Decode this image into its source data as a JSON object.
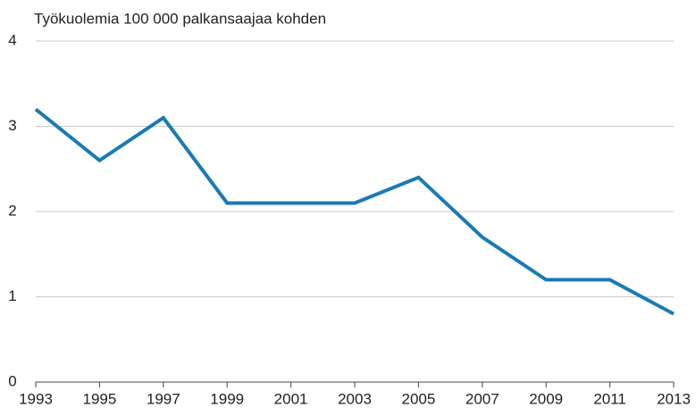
{
  "chart_data": {
    "type": "line",
    "title": "Työkuolemia 100 000 palkansaajaa kohden",
    "x": [
      1993,
      1995,
      1997,
      1999,
      2001,
      2003,
      2005,
      2007,
      2009,
      2011,
      2013
    ],
    "values": [
      3.2,
      2.6,
      3.1,
      2.1,
      2.1,
      2.1,
      2.4,
      1.7,
      1.2,
      1.2,
      0.8
    ],
    "color": "#1a7ab5",
    "xlim": [
      1993,
      2013
    ],
    "xticks": [
      1993,
      1995,
      1997,
      1999,
      2001,
      2003,
      2005,
      2007,
      2009,
      2011,
      2013
    ],
    "ylim": [
      0,
      4
    ],
    "yticks": [
      0,
      1,
      2,
      3,
      4
    ],
    "grid": true
  }
}
